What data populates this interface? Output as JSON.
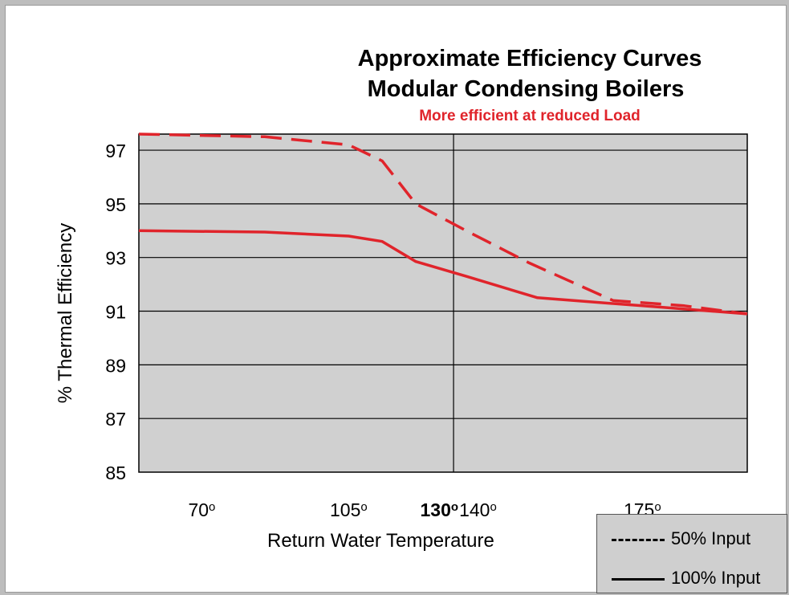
{
  "chart_data": {
    "type": "line",
    "title": "Approximate Efficiency Curves",
    "subtitle": "Modular Condensing  Boilers",
    "annotation": "More efficient at reduced Load",
    "xlabel": "Return Water Temperature",
    "ylabel": "% Thermal Efficiency",
    "ylim": [
      85,
      97.6
    ],
    "xlim": [
      55,
      200
    ],
    "yticks": [
      "97",
      "95",
      "93",
      "91",
      "89",
      "87",
      "85"
    ],
    "xticks": [
      {
        "value": 70,
        "label": "70",
        "sup": "o",
        "bold": false
      },
      {
        "value": 105,
        "label": "105",
        "sup": "o",
        "bold": false
      },
      {
        "value": 130,
        "label": "130",
        "sup": "o",
        "bold": true
      },
      {
        "value": 140,
        "label": "140",
        "sup": "o",
        "bold": false
      },
      {
        "value": 175,
        "label": "175",
        "sup": "o",
        "bold": false
      }
    ],
    "vertical_marker": 130,
    "series": [
      {
        "name": "50% Input",
        "style": "dashed",
        "color": "#e0242b",
        "x": [
          55,
          85,
          105,
          113,
          121,
          133,
          148,
          168,
          185,
          200
        ],
        "y": [
          97.6,
          97.5,
          97.2,
          96.6,
          95.0,
          94.0,
          92.8,
          91.4,
          91.2,
          90.9
        ]
      },
      {
        "name": "100% Input",
        "style": "solid",
        "color": "#e0242b",
        "x": [
          55,
          85,
          105,
          113,
          121,
          133,
          150,
          175,
          200
        ],
        "y": [
          94.0,
          93.95,
          93.8,
          93.6,
          92.85,
          92.3,
          91.5,
          91.2,
          90.9
        ]
      }
    ]
  },
  "legend": {
    "items": [
      {
        "label": "50% Input",
        "style": "dashed"
      },
      {
        "label": "100% Input",
        "style": "solid"
      }
    ]
  }
}
